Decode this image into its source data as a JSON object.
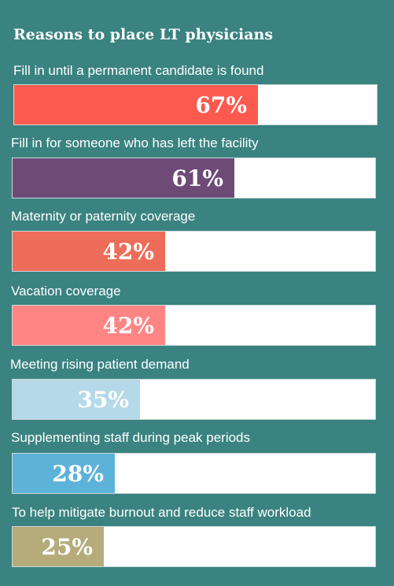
{
  "title": "Reasons to place LT physicians",
  "chart_data": {
    "type": "bar",
    "orientation": "horizontal",
    "title": "Reasons to place LT physicians",
    "xlim": [
      0,
      100
    ],
    "unit": "%",
    "categories": [
      "Fill in until a permanent candidate is found",
      "Fill in for someone who has left the facility",
      "Maternity or paternity coverage",
      "Vacation coverage",
      "Meeting rising patient demand",
      "Supplementing staff during peak periods",
      "To help mitigate burnout and reduce staff workload"
    ],
    "values": [
      67,
      61,
      42,
      42,
      35,
      28,
      25
    ],
    "value_labels": [
      "67%",
      "61%",
      "42%",
      "42%",
      "35%",
      "28%",
      "25%"
    ],
    "colors": [
      "#fd5a4f",
      "#6e4a77",
      "#ee6d5a",
      "#ff8585",
      "#b5d9e8",
      "#5db2d9",
      "#b5ab7b"
    ]
  }
}
